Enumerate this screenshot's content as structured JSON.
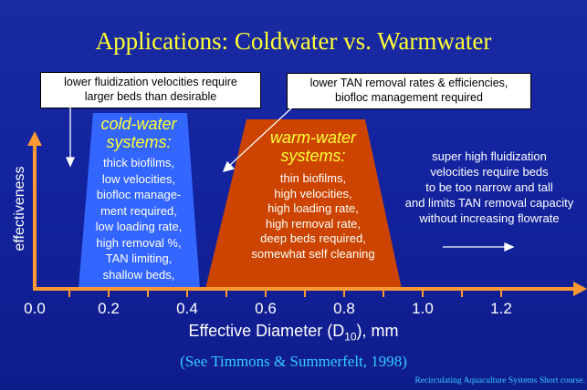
{
  "title": "Applications: Coldwater vs. Warmwater",
  "notes": {
    "cold_top": [
      "lower  fluidization velocities require",
      "larger beds than desirable"
    ],
    "warm_top": [
      "lower TAN removal rates & efficiencies,",
      "biofloc management required"
    ],
    "super": [
      "super high fluidization",
      "velocities require beds",
      "to be too narrow and tall",
      "and limits TAN removal capacity",
      "without increasing flowrate"
    ]
  },
  "cold": {
    "title": [
      "cold-water",
      "systems:"
    ],
    "lines": [
      "thick biofilms,",
      "low velocities,",
      "biofloc manage-",
      "ment required,",
      "low loading rate,",
      "high removal %,",
      "TAN limiting,",
      "shallow beds,"
    ]
  },
  "warm": {
    "title": [
      "warm-water",
      "systems:"
    ],
    "lines": [
      "thin biofilms,",
      "high velocities,",
      "high loading rate,",
      "high removal rate,",
      "deep beds required,",
      "somewhat self cleaning"
    ]
  },
  "axes": {
    "ylabel": "effectiveness",
    "xlabel_main": "Effective Diameter (D",
    "xlabel_sub": "10",
    "xlabel_tail": "), mm",
    "ticks": [
      "0.0",
      "0.2",
      "0.4",
      "0.6",
      "0.8",
      "1.0",
      "1.2"
    ]
  },
  "citation": "(See Timmons & Summerfelt, 1998)",
  "footer": "Recirculating Aquaculture Systems Short course.",
  "colors": {
    "cold_fill": "#3366ff",
    "warm_fill": "#cc4400",
    "axis": "#ff9933",
    "title": "#ffff33",
    "citation": "#33ccff"
  }
}
